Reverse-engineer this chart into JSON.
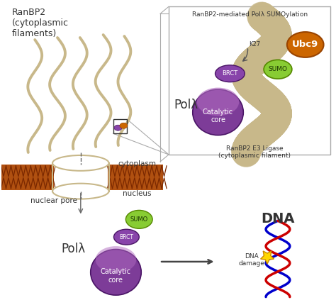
{
  "bg_color": "#ffffff",
  "title_inset": "RanBP2-mediated Polλ SUMOylation",
  "ranbp2_label": "RanBP2\n(cytoplasmic\nfilaments)",
  "nuclear_pore_label": "nuclear pore",
  "cytoplasm_label": "cytoplasm",
  "nucleus_label": "nucleus",
  "pol_lambda_label": "Polλ",
  "dna_label": "DNA",
  "dna_damage_label": "DNA\ndamage",
  "ranbp2_e3_label": "RanBP2 E3 Ligase\n(cytoplasmic filament)",
  "pol_lambda_label2": "Polλ",
  "filament_color": "#c8b88a",
  "filament_dark": "#b8a070",
  "membrane_color": "#8B4513",
  "membrane_bg": "#cd7f32",
  "catalytic_color_top": "#b06ac0",
  "catalytic_color_bot": "#7d3c98",
  "brct_color": "#8844aa",
  "sumo_color": "#88cc33",
  "sumo_edge": "#558800",
  "ubc9_color": "#cc6600",
  "ubc9_edge": "#994400",
  "dna_red": "#cc0000",
  "dna_blue": "#0000cc",
  "star_color": "#FFD700",
  "star_edge": "#cc8800",
  "text_color": "#333333",
  "arrow_color": "#444444",
  "inset_line_color": "#aaaaaa"
}
